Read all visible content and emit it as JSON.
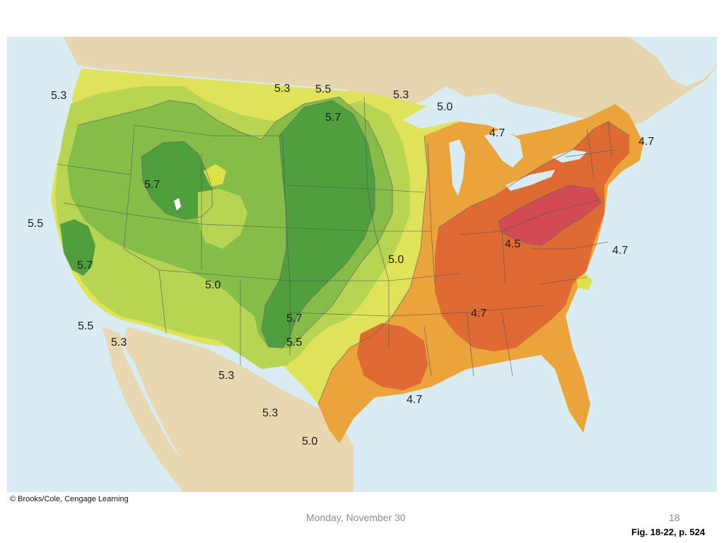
{
  "map": {
    "contour_labels": [
      "5.3",
      "5.3",
      "5.5",
      "5.3",
      "5.0",
      "4.7",
      "4.7",
      "5.7",
      "5.7",
      "5.5",
      "5.7",
      "4.5",
      "4.7",
      "5.5",
      "5.0",
      "5.0",
      "4.7",
      "5.7",
      "5.3",
      "5.5",
      "5.3",
      "5.3",
      "4.7",
      "5.0"
    ],
    "zone_colors": {
      "ph_5_7": "#4f9f3e",
      "ph_5_5": "#86bd49",
      "ph_5_3": "#b7d553",
      "ph_5_0": "#dfe148",
      "ph_4_7": "#eba33c",
      "ph_4_5": "#df6a34",
      "ph_lowest": "#d24a53"
    },
    "water_color": "#d9ecf3",
    "land_color": "#e8d7b0"
  },
  "credit": "© Brooks/Cole, Cengage Learning",
  "footer": {
    "date": "Monday, November 30",
    "page": "18",
    "figure_ref": "Fig. 18-22, p. 524"
  }
}
